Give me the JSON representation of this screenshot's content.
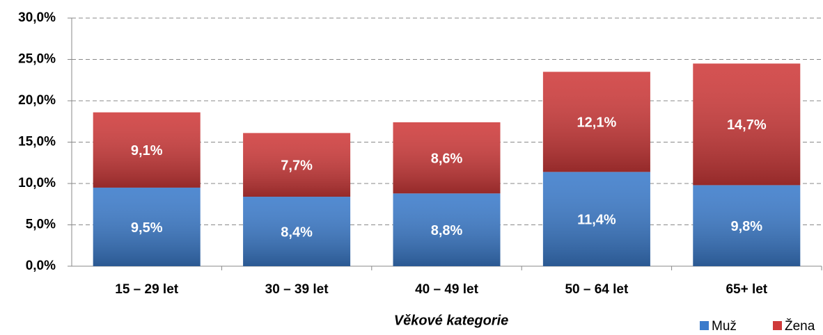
{
  "chart_data": {
    "type": "stacked_bar",
    "x_label": "Věkové kategorie",
    "categories": [
      "15 – 29 let",
      "30 – 39 let",
      "40 – 49 let",
      "50 – 64 let",
      "65+ let"
    ],
    "series": [
      {
        "name": "Muž",
        "color": "#3b7bcb",
        "values": [
          9.5,
          8.4,
          8.8,
          11.4,
          9.8
        ],
        "value_labels": [
          "9,5%",
          "8,4%",
          "8,8%",
          "11,4%",
          "9,8%"
        ]
      },
      {
        "name": "Žena",
        "color": "#cf3a3a",
        "values": [
          9.1,
          7.7,
          8.6,
          12.1,
          14.7
        ],
        "value_labels": [
          "9,1%",
          "7,7%",
          "8,6%",
          "12,1%",
          "14,7%"
        ]
      }
    ],
    "ylim": [
      0,
      30
    ],
    "yticks": [
      {
        "value": 0,
        "label": "0,0%"
      },
      {
        "value": 5,
        "label": "5,0%"
      },
      {
        "value": 10,
        "label": "10,0%"
      },
      {
        "value": 15,
        "label": "15,0%"
      },
      {
        "value": 20,
        "label": "20,0%"
      },
      {
        "value": 25,
        "label": "25,0%"
      },
      {
        "value": 30,
        "label": "30,0%"
      }
    ],
    "grid": true,
    "legend": "bottom-right"
  }
}
